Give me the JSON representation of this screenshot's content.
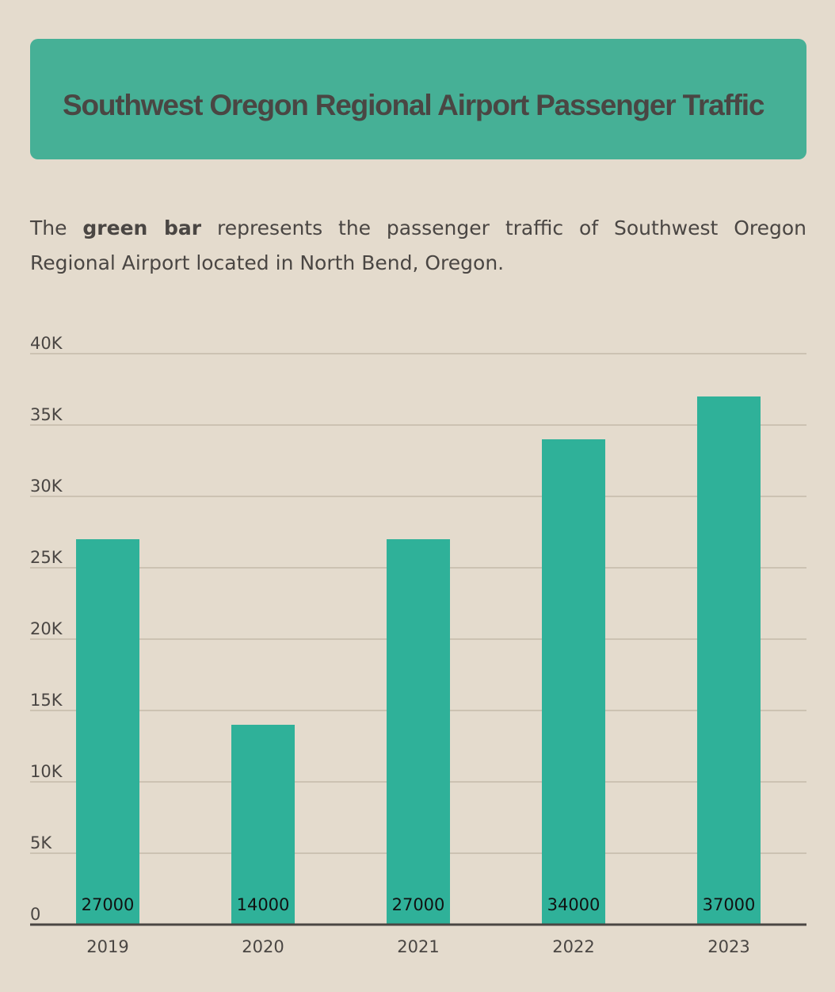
{
  "header": {
    "title": "Southwest Oregon Regional Airport Passenger Traffic"
  },
  "description": {
    "prefix": "The ",
    "emphasis": "green bar",
    "suffix": " represents the passenger traffic of Southwest Oregon Regional Airport located in North Bend, Oregon."
  },
  "colors": {
    "background": "#e4dbcd",
    "header": "#46b096",
    "bar": "#2fb199",
    "text": "#4a4643",
    "grid": "#c4b9a9",
    "baseline": "#4a4643"
  },
  "chart_data": {
    "type": "bar",
    "categories": [
      "2019",
      "2020",
      "2021",
      "2022",
      "2023"
    ],
    "values": [
      27000,
      14000,
      27000,
      34000,
      37000
    ],
    "data_labels": [
      "27000",
      "14000",
      "27000",
      "34000",
      "37000"
    ],
    "ylim": [
      0,
      40000
    ],
    "yticks": [
      0,
      5000,
      10000,
      15000,
      20000,
      25000,
      30000,
      35000,
      40000
    ],
    "ytick_labels": [
      "0",
      "5K",
      "10K",
      "15K",
      "20K",
      "25K",
      "30K",
      "35K",
      "40K"
    ],
    "grid": true,
    "legend": "none"
  }
}
